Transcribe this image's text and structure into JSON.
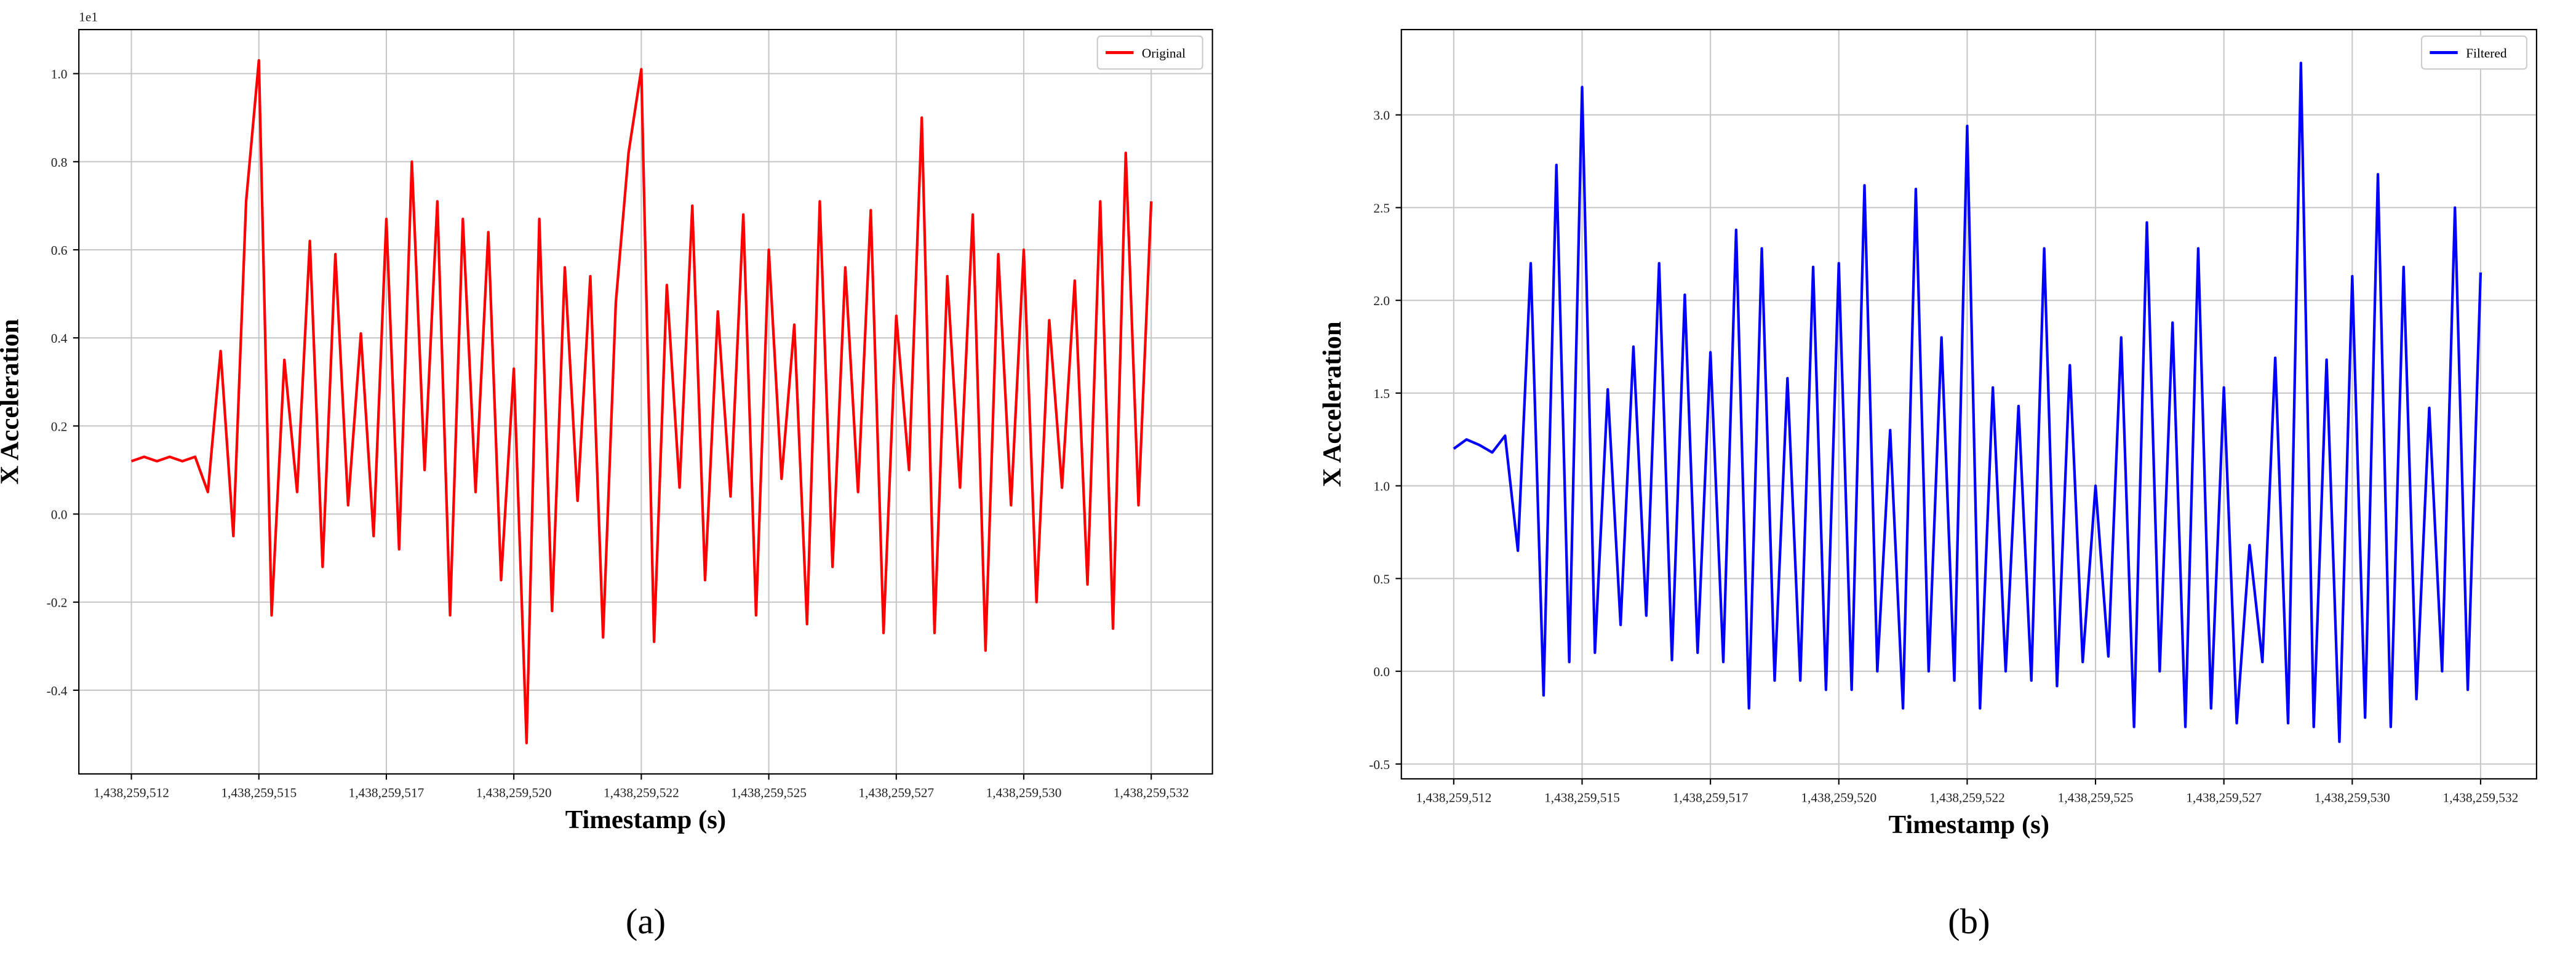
{
  "chart_data": [
    {
      "type": "line",
      "caption": "(a)",
      "xlabel": "Timestamp (s)",
      "ylabel": "X Acceleration",
      "offset_text": "1e1",
      "grid": true,
      "legend": "upper right",
      "xlim": [
        1438259511.47,
        1438259533.7
      ],
      "ylim": [
        -0.59,
        1.1
      ],
      "xticks": [
        {
          "value": 1438259512.5,
          "label": "1,438,259,512"
        },
        {
          "value": 1438259515,
          "label": "1,438,259,515"
        },
        {
          "value": 1438259517.5,
          "label": "1,438,259,517"
        },
        {
          "value": 1438259520,
          "label": "1,438,259,520"
        },
        {
          "value": 1438259522.5,
          "label": "1,438,259,522"
        },
        {
          "value": 1438259525,
          "label": "1,438,259,525"
        },
        {
          "value": 1438259527.5,
          "label": "1,438,259,527"
        },
        {
          "value": 1438259530,
          "label": "1,438,259,530"
        },
        {
          "value": 1438259532.5,
          "label": "1,438,259,532"
        }
      ],
      "yticks": [
        -0.4,
        -0.2,
        {
          "value": 0,
          "label": "0.0"
        },
        0.2,
        0.4,
        0.6,
        0.8,
        {
          "value": 1,
          "label": "1.0"
        }
      ],
      "x": [
        1438259512.5,
        1438259512.75,
        1438259513,
        1438259513.25,
        1438259513.5,
        1438259513.75,
        1438259514,
        1438259514.25,
        1438259514.5,
        1438259514.75,
        1438259515,
        1438259515.25,
        1438259515.5,
        1438259515.75,
        1438259516,
        1438259516.25,
        1438259516.5,
        1438259516.75,
        1438259517,
        1438259517.25,
        1438259517.5,
        1438259517.75,
        1438259518,
        1438259518.25,
        1438259518.5,
        1438259518.75,
        1438259519,
        1438259519.25,
        1438259519.5,
        1438259519.75,
        1438259520,
        1438259520.25,
        1438259520.5,
        1438259520.75,
        1438259521,
        1438259521.25,
        1438259521.5,
        1438259521.75,
        1438259522,
        1438259522.25,
        1438259522.5,
        1438259522.75,
        1438259523,
        1438259523.25,
        1438259523.5,
        1438259523.75,
        1438259524,
        1438259524.25,
        1438259524.5,
        1438259524.75,
        1438259525,
        1438259525.25,
        1438259525.5,
        1438259525.75,
        1438259526,
        1438259526.25,
        1438259526.5,
        1438259526.75,
        1438259527,
        1438259527.25,
        1438259527.5,
        1438259527.75,
        1438259528,
        1438259528.25,
        1438259528.5,
        1438259528.75,
        1438259529,
        1438259529.25,
        1438259529.5,
        1438259529.75,
        1438259530,
        1438259530.25,
        1438259530.5,
        1438259530.75,
        1438259531,
        1438259531.25,
        1438259531.5,
        1438259531.75,
        1438259532,
        1438259532.25,
        1438259532.5
      ],
      "series": [
        {
          "name": "Original",
          "color": "#ff0000",
          "values": [
            0.12,
            0.13,
            0.12,
            0.13,
            0.12,
            0.13,
            0.05,
            0.37,
            -0.05,
            0.71,
            1.03,
            -0.23,
            0.35,
            0.05,
            0.62,
            -0.12,
            0.59,
            0.02,
            0.41,
            -0.05,
            0.67,
            -0.08,
            0.8,
            0.1,
            0.71,
            -0.23,
            0.67,
            0.05,
            0.64,
            -0.15,
            0.33,
            -0.52,
            0.67,
            -0.22,
            0.56,
            0.03,
            0.54,
            -0.28,
            0.48,
            0.82,
            1.01,
            -0.29,
            0.52,
            0.06,
            0.7,
            -0.15,
            0.46,
            0.04,
            0.68,
            -0.23,
            0.6,
            0.08,
            0.43,
            -0.25,
            0.71,
            -0.12,
            0.56,
            0.05,
            0.69,
            -0.27,
            0.45,
            0.1,
            0.9,
            -0.27,
            0.54,
            0.06,
            0.68,
            -0.31,
            0.59,
            0.02,
            0.6,
            -0.2,
            0.44,
            0.06,
            0.53,
            -0.16,
            0.71,
            -0.26,
            0.82,
            0.02,
            0.71
          ]
        }
      ]
    },
    {
      "type": "line",
      "caption": "(b)",
      "xlabel": "Timestamp (s)",
      "ylabel": "X Acceleration",
      "grid": true,
      "legend": "upper right",
      "xlim": [
        1438259511.48,
        1438259533.59
      ],
      "ylim": [
        -0.58,
        3.46
      ],
      "xticks": [
        {
          "value": 1438259512.5,
          "label": "1,438,259,512"
        },
        {
          "value": 1438259515,
          "label": "1,438,259,515"
        },
        {
          "value": 1438259517.5,
          "label": "1,438,259,517"
        },
        {
          "value": 1438259520,
          "label": "1,438,259,520"
        },
        {
          "value": 1438259522.5,
          "label": "1,438,259,522"
        },
        {
          "value": 1438259525,
          "label": "1,438,259,525"
        },
        {
          "value": 1438259527.5,
          "label": "1,438,259,527"
        },
        {
          "value": 1438259530,
          "label": "1,438,259,530"
        },
        {
          "value": 1438259532.5,
          "label": "1,438,259,532"
        }
      ],
      "yticks": [
        -0.5,
        {
          "value": 0,
          "label": "0.0"
        },
        0.5,
        {
          "value": 1,
          "label": "1.0"
        },
        1.5,
        {
          "value": 2,
          "label": "2.0"
        },
        2.5,
        {
          "value": 3,
          "label": "3.0"
        }
      ],
      "x": [
        1438259512.5,
        1438259512.75,
        1438259513,
        1438259513.25,
        1438259513.5,
        1438259513.75,
        1438259514,
        1438259514.25,
        1438259514.5,
        1438259514.75,
        1438259515,
        1438259515.25,
        1438259515.5,
        1438259515.75,
        1438259516,
        1438259516.25,
        1438259516.5,
        1438259516.75,
        1438259517,
        1438259517.25,
        1438259517.5,
        1438259517.75,
        1438259518,
        1438259518.25,
        1438259518.5,
        1438259518.75,
        1438259519,
        1438259519.25,
        1438259519.5,
        1438259519.75,
        1438259520,
        1438259520.25,
        1438259520.5,
        1438259520.75,
        1438259521,
        1438259521.25,
        1438259521.5,
        1438259521.75,
        1438259522,
        1438259522.25,
        1438259522.5,
        1438259522.75,
        1438259523,
        1438259523.25,
        1438259523.5,
        1438259523.75,
        1438259524,
        1438259524.25,
        1438259524.5,
        1438259524.75,
        1438259525,
        1438259525.25,
        1438259525.5,
        1438259525.75,
        1438259526,
        1438259526.25,
        1438259526.5,
        1438259526.75,
        1438259527,
        1438259527.25,
        1438259527.5,
        1438259527.75,
        1438259528,
        1438259528.25,
        1438259528.5,
        1438259528.75,
        1438259529,
        1438259529.25,
        1438259529.5,
        1438259529.75,
        1438259530,
        1438259530.25,
        1438259530.5,
        1438259530.75,
        1438259531,
        1438259531.25,
        1438259531.5,
        1438259531.75,
        1438259532,
        1438259532.25,
        1438259532.5
      ],
      "series": [
        {
          "name": "Filtered",
          "color": "#0000ff",
          "values": [
            1.2,
            1.25,
            1.22,
            1.18,
            1.27,
            0.65,
            2.2,
            -0.13,
            2.73,
            0.05,
            3.15,
            0.1,
            1.52,
            0.25,
            1.75,
            0.3,
            2.2,
            0.06,
            2.03,
            0.1,
            1.72,
            0.05,
            2.38,
            -0.2,
            2.28,
            -0.05,
            1.58,
            -0.05,
            2.18,
            -0.1,
            2.2,
            -0.1,
            2.62,
            0.0,
            1.3,
            -0.2,
            2.6,
            0.0,
            1.8,
            -0.05,
            2.94,
            -0.2,
            1.53,
            0.0,
            1.43,
            -0.05,
            2.28,
            -0.08,
            1.65,
            0.05,
            1.0,
            0.08,
            1.8,
            -0.3,
            2.42,
            0.0,
            1.88,
            -0.3,
            2.28,
            -0.2,
            1.53,
            -0.28,
            0.68,
            0.05,
            1.69,
            -0.28,
            3.28,
            -0.3,
            1.68,
            -0.38,
            2.13,
            -0.25,
            2.68,
            -0.3,
            2.18,
            -0.15,
            1.42,
            0.0,
            2.5,
            -0.1,
            2.15
          ]
        }
      ]
    }
  ]
}
